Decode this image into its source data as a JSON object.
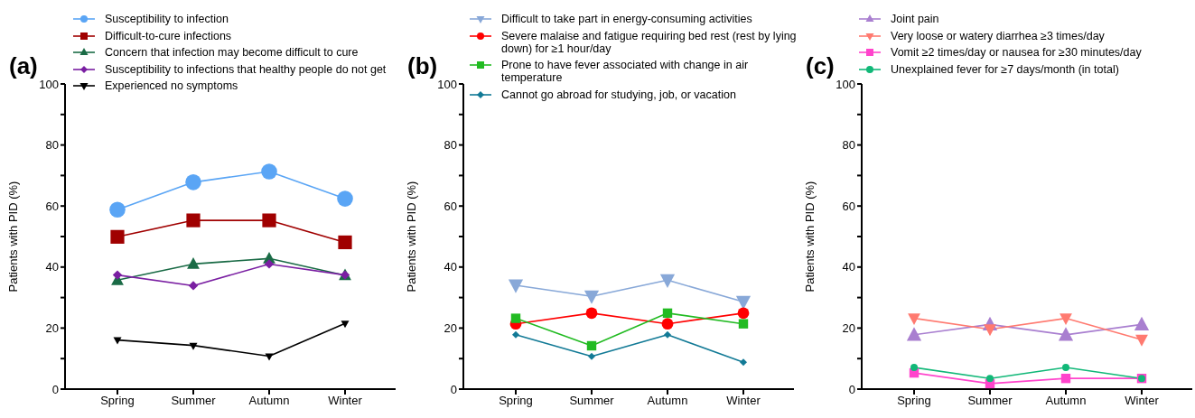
{
  "chart_data": [
    {
      "type": "line",
      "title": "(a)",
      "ylabel": "Patients with PID (%)",
      "categories": [
        "Spring",
        "Summer",
        "Autumn",
        "Winter"
      ],
      "ylim": [
        0,
        100
      ],
      "yticks": [
        0,
        {
          "value": 10,
          "label": null
        },
        20,
        {
          "value": 30,
          "label": null
        },
        40,
        {
          "value": 50,
          "label": null
        },
        60,
        {
          "value": 70,
          "label": null
        },
        80,
        {
          "value": 90,
          "label": null
        },
        100
      ],
      "grid": false,
      "legend": "top",
      "line_style": "solid",
      "series": [
        {
          "name": "Susceptibility to infection",
          "color": "#5aa5f5",
          "marker": "circle",
          "values": [
            58.8,
            67.8,
            71.3,
            62.4
          ]
        },
        {
          "name": "Difficult-to-cure infections",
          "color": "#a00000",
          "marker": "square",
          "values": [
            49.9,
            55.3,
            55.3,
            48.1
          ]
        },
        {
          "name": "Concern that infection may become difficult to cure",
          "color": "#1a6b46",
          "marker": "triangle",
          "values": [
            35.7,
            41.0,
            42.8,
            37.3
          ]
        },
        {
          "name": "Susceptibility to infections that healthy people do not get",
          "color": "#7a1fa2",
          "marker": "diamond",
          "values": [
            37.4,
            33.9,
            41.0,
            37.4
          ]
        },
        {
          "name": "Experienced no symptoms",
          "color": "#000000",
          "marker": "triangle-down",
          "values": [
            16.1,
            14.3,
            10.8,
            21.5
          ]
        }
      ]
    },
    {
      "type": "line",
      "title": "(b)",
      "ylabel": "Patients with PID (%)",
      "categories": [
        "Spring",
        "Summer",
        "Autumn",
        "Winter"
      ],
      "ylim": [
        0,
        100
      ],
      "yticks": [
        0,
        {
          "value": 10,
          "label": null
        },
        20,
        {
          "value": 30,
          "label": null
        },
        40,
        {
          "value": 50,
          "label": null
        },
        60,
        {
          "value": 70,
          "label": null
        },
        80,
        {
          "value": 90,
          "label": null
        },
        100
      ],
      "grid": false,
      "legend": "top",
      "line_style": "solid",
      "series": [
        {
          "name": "Difficult to take part in energy-consuming activities",
          "color": "#88a8d8",
          "marker": "triangle-down",
          "values": [
            34.0,
            30.4,
            35.7,
            28.6
          ]
        },
        {
          "name": "Severe malaise and fatigue requiring bed rest (rest by lying down) for ≥1 hour/day",
          "color": "#ff0000",
          "marker": "circle",
          "values": [
            21.4,
            24.9,
            21.4,
            24.9
          ]
        },
        {
          "name": "Prone to have fever associated with change in air temperature",
          "color": "#22bb22",
          "marker": "square",
          "values": [
            23.2,
            14.2,
            24.9,
            21.4
          ]
        },
        {
          "name": "Cannot go abroad for studying, job, or vacation",
          "color": "#127a96",
          "marker": "diamond",
          "values": [
            17.8,
            10.7,
            17.8,
            8.8
          ]
        }
      ]
    },
    {
      "type": "line",
      "title": "(c)",
      "ylabel": "Patients with PID (%)",
      "categories": [
        "Spring",
        "Summer",
        "Autumn",
        "Winter"
      ],
      "ylim": [
        0,
        100
      ],
      "yticks": [
        0,
        {
          "value": 10,
          "label": null
        },
        20,
        {
          "value": 30,
          "label": null
        },
        40,
        {
          "value": 50,
          "label": null
        },
        60,
        {
          "value": 70,
          "label": null
        },
        80,
        {
          "value": 90,
          "label": null
        },
        100
      ],
      "grid": false,
      "legend": "top",
      "line_style": "solid",
      "series": [
        {
          "name": "Joint pain",
          "color": "#a97fd0",
          "marker": "triangle",
          "values": [
            17.8,
            21.2,
            17.8,
            21.2
          ]
        },
        {
          "name": "Very loose or watery diarrhea ≥3 times/day",
          "color": "#ff7a70",
          "marker": "triangle-down",
          "values": [
            23.2,
            19.6,
            23.2,
            16.2
          ]
        },
        {
          "name": "Vomit ≥2 times/day or nausea for ≥30 minutes/day",
          "color": "#ff44cc",
          "marker": "square",
          "values": [
            5.3,
            1.8,
            3.5,
            3.5
          ]
        },
        {
          "name": "Unexplained fever for ≥7 days/month (in total)",
          "color": "#11b878",
          "marker": "circle",
          "values": [
            7.1,
            3.5,
            7.1,
            3.5
          ]
        }
      ]
    }
  ]
}
